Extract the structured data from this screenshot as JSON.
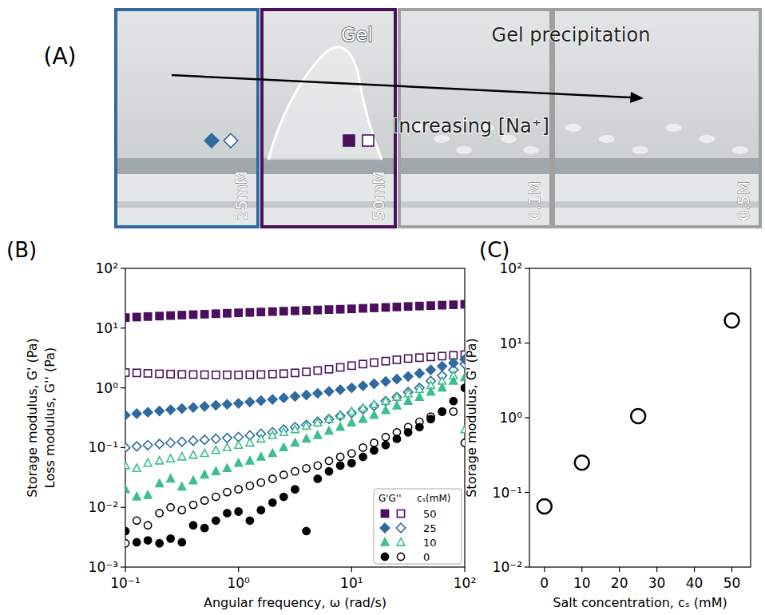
{
  "photo_panel": {
    "panel_label": "(A)",
    "frames": [
      {
        "label": "25mM",
        "color": "#2f6aa0",
        "marker": "diamond"
      },
      {
        "label": "50mM",
        "color": "#4b0f5e",
        "marker": "square"
      },
      {
        "label": "0.1M",
        "color": "#a0a0a0"
      },
      {
        "label": "0.5M",
        "color": "#a0a0a0"
      }
    ],
    "annotations": [
      "Gel",
      "Gel precipitation"
    ],
    "arrow_label": "Increasing [Na⁺]"
  },
  "chart_data": [
    {
      "type": "scatter",
      "panel_label": "(B)",
      "x_label": "Angular frequency, ω (rad/s)",
      "y_label": [
        "Storage modulus, G' (Pa)",
        "Loss modulus, G'' (Pa)"
      ],
      "log": true,
      "grid": false,
      "legend": "lower right",
      "legend_title": [
        "G'G''",
        "cₛ(mM)"
      ],
      "xlim": [
        0.1,
        100
      ],
      "xticks": [
        {
          "value": 0.1,
          "label": "10⁻¹"
        },
        {
          "value": 1,
          "label": "10⁰"
        },
        {
          "value": 10,
          "label": "10¹"
        },
        {
          "value": 100,
          "label": "10²"
        }
      ],
      "ylim": [
        0.001,
        100
      ],
      "yticks": [
        {
          "value": 0.001,
          "label": "10⁻³"
        },
        {
          "value": 0.01,
          "label": "10⁻²"
        },
        {
          "value": 0.1,
          "label": "10⁻¹"
        },
        {
          "value": 1,
          "label": "10⁰"
        },
        {
          "value": 10,
          "label": "10¹"
        },
        {
          "value": 100,
          "label": "10²"
        }
      ],
      "x": [
        0.1,
        0.126,
        0.158,
        0.2,
        0.251,
        0.316,
        0.398,
        0.501,
        0.631,
        0.794,
        1,
        1.26,
        1.58,
        2,
        2.51,
        3.16,
        3.98,
        5.01,
        6.31,
        7.94,
        10,
        12.6,
        15.8,
        20,
        25.1,
        31.6,
        39.8,
        50.1,
        63.1,
        79.4,
        100
      ],
      "series": [
        {
          "name": "50",
          "color": "#4b0f5e",
          "marker": "square",
          "values": [
            15,
            15.3,
            15.6,
            15.9,
            16.2,
            16.5,
            16.8,
            17.1,
            17.4,
            17.7,
            18,
            18.3,
            18.6,
            18.9,
            19.2,
            19.5,
            19.8,
            20.1,
            20.4,
            20.7,
            21,
            21.4,
            21.8,
            22.2,
            22.6,
            23,
            23.4,
            23.8,
            24.2,
            24.6,
            25
          ],
          "loss_values": [
            1.8,
            1.78,
            1.75,
            1.72,
            1.7,
            1.68,
            1.67,
            1.66,
            1.65,
            1.65,
            1.65,
            1.66,
            1.67,
            1.7,
            1.73,
            1.78,
            1.85,
            1.95,
            2.05,
            2.2,
            2.35,
            2.5,
            2.65,
            2.8,
            2.95,
            3.1,
            3.2,
            3.3,
            3.4,
            3.5,
            3.6
          ]
        },
        {
          "name": "25",
          "color": "#2f6aa0",
          "marker": "diamond",
          "values": [
            0.35,
            0.37,
            0.39,
            0.41,
            0.43,
            0.45,
            0.47,
            0.49,
            0.51,
            0.53,
            0.55,
            0.58,
            0.61,
            0.64,
            0.68,
            0.72,
            0.76,
            0.81,
            0.87,
            0.93,
            1.0,
            1.08,
            1.17,
            1.28,
            1.4,
            1.55,
            1.75,
            2.0,
            2.3,
            2.6,
            3.0
          ],
          "loss_values": [
            0.1,
            0.105,
            0.11,
            0.115,
            0.12,
            0.125,
            0.13,
            0.135,
            0.14,
            0.145,
            0.15,
            0.16,
            0.17,
            0.18,
            0.2,
            0.22,
            0.24,
            0.27,
            0.3,
            0.34,
            0.38,
            0.44,
            0.5,
            0.6,
            0.7,
            0.85,
            1.0,
            1.3,
            1.6,
            2.0,
            2.5
          ]
        },
        {
          "name": "10",
          "color": "#3cbf8e",
          "marker": "triangle",
          "values": [
            0.02,
            0.015,
            0.016,
            0.025,
            0.03,
            0.022,
            0.028,
            0.035,
            0.04,
            0.045,
            0.055,
            0.06,
            0.07,
            0.08,
            0.1,
            0.12,
            0.14,
            0.16,
            0.19,
            0.22,
            0.26,
            0.3,
            0.35,
            0.42,
            0.5,
            0.6,
            0.7,
            0.85,
            1.0,
            1.3,
            1.5
          ],
          "loss_values": [
            0.05,
            0.045,
            0.055,
            0.06,
            0.065,
            0.07,
            0.075,
            0.08,
            0.09,
            0.1,
            0.11,
            0.12,
            0.14,
            0.16,
            0.18,
            0.2,
            0.23,
            0.26,
            0.3,
            0.35,
            0.4,
            0.46,
            0.53,
            0.6,
            0.7,
            0.8,
            0.95,
            1.1,
            1.3,
            1.6,
            0.2
          ]
        },
        {
          "name": "0",
          "color": "#000000",
          "marker": "circle",
          "values": [
            0.004,
            0.0026,
            0.0028,
            0.0025,
            0.003,
            0.0026,
            0.005,
            0.0045,
            0.006,
            0.008,
            0.0085,
            0.006,
            0.009,
            0.012,
            0.015,
            0.02,
            0.004,
            0.03,
            0.04,
            0.05,
            0.055,
            0.07,
            0.09,
            0.11,
            0.14,
            0.18,
            0.22,
            0.3,
            0.4,
            0.6,
            1.0
          ],
          "loss_values": [
            0.0025,
            0.006,
            0.005,
            0.008,
            0.01,
            0.009,
            0.011,
            0.013,
            0.015,
            0.018,
            0.02,
            0.023,
            0.026,
            0.03,
            0.035,
            0.04,
            0.045,
            0.05,
            0.06,
            0.07,
            0.08,
            0.1,
            0.12,
            0.15,
            0.18,
            0.22,
            0.27,
            0.33,
            0.4,
            0.4,
            0.12
          ]
        }
      ]
    },
    {
      "type": "scatter",
      "panel_label": "(C)",
      "x_label": "Salt concentration, cₛ (mM)",
      "y_label": "Storage modulus, G' (Pa)",
      "log": "y",
      "grid": false,
      "xlim": [
        -4,
        55
      ],
      "xticks": [
        0,
        10,
        20,
        30,
        40,
        50
      ],
      "ylim": [
        0.01,
        100
      ],
      "yticks": [
        {
          "value": 0.01,
          "label": "10⁻²"
        },
        {
          "value": 0.1,
          "label": "10⁻¹"
        },
        {
          "value": 1,
          "label": "10⁰"
        },
        {
          "value": 10,
          "label": "10¹"
        },
        {
          "value": 100,
          "label": "10²"
        }
      ],
      "series": [
        {
          "color": "#000000",
          "marker": "circle-open",
          "x": [
            0,
            10,
            25,
            50
          ],
          "values": [
            0.065,
            0.25,
            1.05,
            20
          ]
        }
      ]
    }
  ]
}
